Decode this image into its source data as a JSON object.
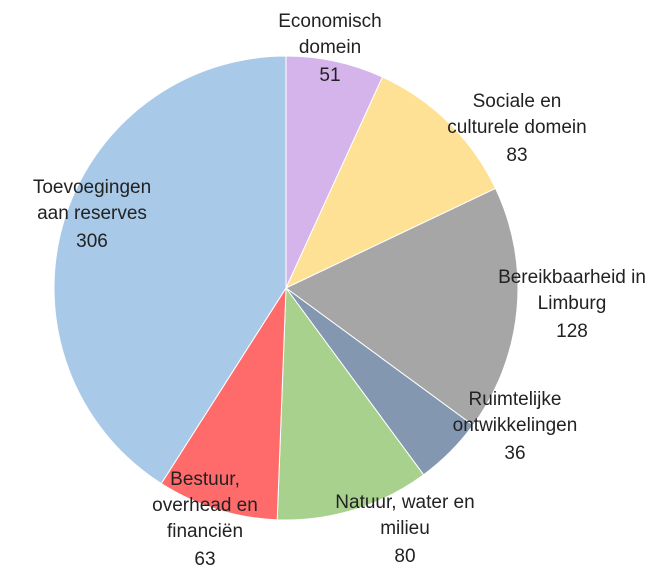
{
  "chart_data": {
    "type": "pie",
    "categories": [
      [
        "Economisch",
        "domein"
      ],
      [
        "Sociale en",
        "culturele domein"
      ],
      [
        "Bereikbaarheid in",
        "Limburg"
      ],
      [
        "Ruimtelijke",
        "ontwikkelingen"
      ],
      [
        "Natuur,  water en",
        "milieu"
      ],
      [
        "Bestuur,",
        "overhead en",
        "financiën"
      ],
      [
        "Toevoegingen",
        "aan reserves"
      ]
    ],
    "values": [
      51,
      83,
      128,
      36,
      80,
      63,
      306
    ],
    "colors": [
      "#d4b4ea",
      "#ffe195",
      "#a6a6a6",
      "#8497b0",
      "#a9d18e",
      "#ff6b6b",
      "#a9c9e9"
    ]
  }
}
